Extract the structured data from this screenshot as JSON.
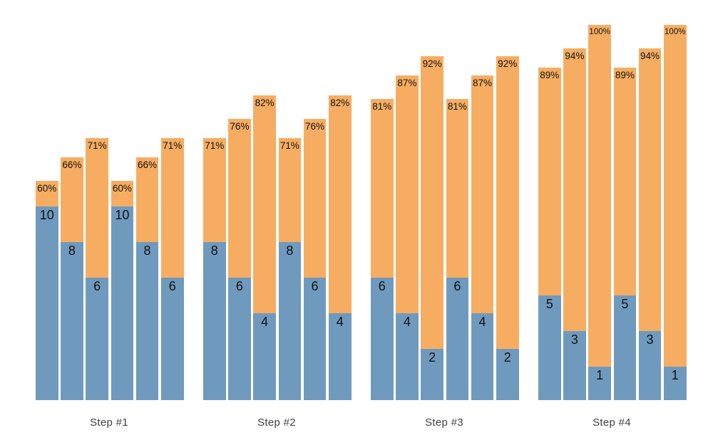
{
  "chart_data": {
    "type": "bar",
    "variant": "grouped-stacked-columns",
    "title": "",
    "xlabel": "",
    "ylabel": "",
    "legend_position": "none",
    "grid": false,
    "axis_lines": "none",
    "background_color": "#ffffff",
    "ylim_pct": [
      0,
      100
    ],
    "colors": {
      "blue_segment": "#6f9abe",
      "orange_segment": "#f6ad62",
      "segment_value_label": "#111111",
      "pct_label": "#111111",
      "group_label": "#404040"
    },
    "groups": [
      {
        "label": "Step #1",
        "bars": [
          {
            "value": 10,
            "value_label": "10",
            "pct": 60,
            "pct_label": "60%"
          },
          {
            "value": 8,
            "value_label": "8",
            "pct": 66,
            "pct_label": "66%"
          },
          {
            "value": 6,
            "value_label": "6",
            "pct": 71,
            "pct_label": "71%"
          },
          {
            "value": 10,
            "value_label": "10",
            "pct": 60,
            "pct_label": "60%"
          },
          {
            "value": 8,
            "value_label": "8",
            "pct": 66,
            "pct_label": "66%"
          },
          {
            "value": 6,
            "value_label": "6",
            "pct": 71,
            "pct_label": "71%"
          }
        ]
      },
      {
        "label": "Step #2",
        "bars": [
          {
            "value": 8,
            "value_label": "8",
            "pct": 71,
            "pct_label": "71%"
          },
          {
            "value": 6,
            "value_label": "6",
            "pct": 76,
            "pct_label": "76%"
          },
          {
            "value": 4,
            "value_label": "4",
            "pct": 82,
            "pct_label": "82%"
          },
          {
            "value": 8,
            "value_label": "8",
            "pct": 71,
            "pct_label": "71%"
          },
          {
            "value": 6,
            "value_label": "6",
            "pct": 76,
            "pct_label": "76%"
          },
          {
            "value": 4,
            "value_label": "4",
            "pct": 82,
            "pct_label": "82%"
          }
        ]
      },
      {
        "label": "Step #3",
        "bars": [
          {
            "value": 6,
            "value_label": "6",
            "pct": 81,
            "pct_label": "81%"
          },
          {
            "value": 4,
            "value_label": "4",
            "pct": 87,
            "pct_label": "87%"
          },
          {
            "value": 2,
            "value_label": "2",
            "pct": 92,
            "pct_label": "92%"
          },
          {
            "value": 6,
            "value_label": "6",
            "pct": 81,
            "pct_label": "81%"
          },
          {
            "value": 4,
            "value_label": "4",
            "pct": 87,
            "pct_label": "87%"
          },
          {
            "value": 2,
            "value_label": "2",
            "pct": 92,
            "pct_label": "92%"
          }
        ]
      },
      {
        "label": "Step #4",
        "bars": [
          {
            "value": 5,
            "value_label": "5",
            "pct": 89,
            "pct_label": "89%"
          },
          {
            "value": 3,
            "value_label": "3",
            "pct": 94,
            "pct_label": "94%"
          },
          {
            "value": 1,
            "value_label": "1",
            "pct": 100,
            "pct_label": "100%"
          },
          {
            "value": 5,
            "value_label": "5",
            "pct": 89,
            "pct_label": "89%"
          },
          {
            "value": 3,
            "value_label": "3",
            "pct": 94,
            "pct_label": "94%"
          },
          {
            "value": 1,
            "value_label": "1",
            "pct": 100,
            "pct_label": "100%"
          }
        ]
      }
    ]
  }
}
